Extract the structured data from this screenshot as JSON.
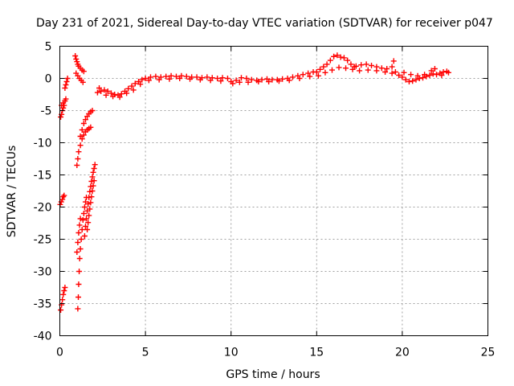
{
  "chart_data": {
    "type": "scatter",
    "title": "Day 231 of 2021, Sidereal Day-to-day VTEC variation (SDTVAR) for receiver p047",
    "xlabel": "GPS time / hours",
    "ylabel": "SDTVAR / TECUs",
    "xlim": [
      0,
      25
    ],
    "ylim": [
      -40,
      5
    ],
    "xticks": [
      0,
      5,
      10,
      15,
      20,
      25
    ],
    "yticks": [
      5,
      0,
      -5,
      -10,
      -15,
      -20,
      -25,
      -30,
      -35,
      -40
    ],
    "grid": true,
    "marker": "+",
    "color": "#ff0000",
    "series": [
      {
        "name": "SDTVAR",
        "points": [
          [
            0.05,
            -36.0
          ],
          [
            0.1,
            -35.2
          ],
          [
            0.15,
            -34.4
          ],
          [
            0.2,
            -33.6
          ],
          [
            0.25,
            -33.0
          ],
          [
            0.3,
            -32.5
          ],
          [
            0.02,
            -19.6
          ],
          [
            0.08,
            -19.2
          ],
          [
            0.15,
            -18.8
          ],
          [
            0.2,
            -18.4
          ],
          [
            0.25,
            -18.2
          ],
          [
            0.05,
            -6.0
          ],
          [
            0.1,
            -5.6
          ],
          [
            0.15,
            -5.0
          ],
          [
            0.2,
            -4.6
          ],
          [
            0.25,
            -4.2
          ],
          [
            0.1,
            -4.2
          ],
          [
            0.2,
            -3.8
          ],
          [
            0.3,
            -3.5
          ],
          [
            0.35,
            -3.2
          ],
          [
            0.3,
            -1.5
          ],
          [
            0.35,
            -1.0
          ],
          [
            0.4,
            -0.5
          ],
          [
            0.45,
            0.0
          ],
          [
            0.9,
            3.5
          ],
          [
            0.95,
            3.0
          ],
          [
            1.0,
            2.6
          ],
          [
            1.05,
            2.2
          ],
          [
            1.1,
            1.9
          ],
          [
            1.2,
            1.6
          ],
          [
            1.3,
            1.3
          ],
          [
            1.4,
            1.1
          ],
          [
            0.95,
            0.8
          ],
          [
            1.05,
            0.4
          ],
          [
            1.15,
            0.0
          ],
          [
            1.25,
            -0.3
          ],
          [
            1.35,
            -0.6
          ],
          [
            1.0,
            -13.5
          ],
          [
            1.05,
            -12.5
          ],
          [
            1.1,
            -11.4
          ],
          [
            1.2,
            -10.4
          ],
          [
            1.3,
            -9.4
          ],
          [
            1.4,
            -8.8
          ],
          [
            1.5,
            -8.3
          ],
          [
            1.6,
            -8.0
          ],
          [
            1.7,
            -7.8
          ],
          [
            1.8,
            -7.6
          ],
          [
            1.2,
            -9.0
          ],
          [
            1.3,
            -8.0
          ],
          [
            1.4,
            -7.0
          ],
          [
            1.5,
            -6.4
          ],
          [
            1.6,
            -5.9
          ],
          [
            1.7,
            -5.5
          ],
          [
            1.8,
            -5.2
          ],
          [
            1.9,
            -5.0
          ],
          [
            1.05,
            -35.8
          ],
          [
            1.08,
            -34.0
          ],
          [
            1.1,
            -32.0
          ],
          [
            1.13,
            -30.0
          ],
          [
            1.16,
            -28.0
          ],
          [
            1.2,
            -26.5
          ],
          [
            1.25,
            -25.0
          ],
          [
            1.3,
            -23.5
          ],
          [
            1.35,
            -22.0
          ],
          [
            1.4,
            -21.0
          ],
          [
            1.45,
            -20.0
          ],
          [
            1.5,
            -19.2
          ],
          [
            1.55,
            -18.5
          ],
          [
            1.0,
            -27.0
          ],
          [
            1.05,
            -25.5
          ],
          [
            1.1,
            -24.0
          ],
          [
            1.15,
            -22.8
          ],
          [
            1.2,
            -21.8
          ],
          [
            1.45,
            -24.5
          ],
          [
            1.5,
            -23.0
          ],
          [
            1.55,
            -21.8
          ],
          [
            1.6,
            -20.6
          ],
          [
            1.65,
            -19.5
          ],
          [
            1.7,
            -18.5
          ],
          [
            1.75,
            -17.6
          ],
          [
            1.8,
            -16.8
          ],
          [
            1.85,
            -16.0
          ],
          [
            1.9,
            -15.3
          ],
          [
            1.95,
            -14.6
          ],
          [
            2.0,
            -14.0
          ],
          [
            2.05,
            -13.4
          ],
          [
            1.6,
            -23.5
          ],
          [
            1.65,
            -22.4
          ],
          [
            1.7,
            -21.3
          ],
          [
            1.75,
            -20.3
          ],
          [
            1.8,
            -19.3
          ],
          [
            1.85,
            -18.4
          ],
          [
            1.9,
            -17.5
          ],
          [
            1.95,
            -16.7
          ],
          [
            2.0,
            -15.9
          ],
          [
            2.2,
            -2.2
          ],
          [
            2.4,
            -2.0
          ],
          [
            2.6,
            -1.8
          ],
          [
            2.8,
            -2.0
          ],
          [
            3.0,
            -2.3
          ],
          [
            3.2,
            -2.5
          ],
          [
            3.4,
            -2.6
          ],
          [
            3.6,
            -2.4
          ],
          [
            3.8,
            -2.0
          ],
          [
            4.0,
            -1.6
          ],
          [
            4.2,
            -1.2
          ],
          [
            4.4,
            -0.8
          ],
          [
            4.6,
            -0.5
          ],
          [
            4.8,
            -0.2
          ],
          [
            2.3,
            -1.5
          ],
          [
            2.7,
            -2.6
          ],
          [
            3.1,
            -2.8
          ],
          [
            3.5,
            -2.9
          ],
          [
            3.9,
            -2.3
          ],
          [
            4.3,
            -1.8
          ],
          [
            4.7,
            -0.9
          ],
          [
            5.0,
            0.0
          ],
          [
            5.3,
            0.2
          ],
          [
            5.6,
            0.3
          ],
          [
            5.9,
            0.2
          ],
          [
            6.2,
            0.3
          ],
          [
            6.5,
            0.4
          ],
          [
            6.8,
            0.3
          ],
          [
            7.1,
            0.4
          ],
          [
            7.4,
            0.3
          ],
          [
            7.7,
            0.2
          ],
          [
            8.0,
            0.2
          ],
          [
            8.3,
            0.1
          ],
          [
            8.6,
            0.2
          ],
          [
            8.9,
            0.1
          ],
          [
            9.2,
            0.0
          ],
          [
            9.5,
            0.1
          ],
          [
            9.8,
            0.0
          ],
          [
            5.2,
            -0.3
          ],
          [
            5.8,
            -0.2
          ],
          [
            6.4,
            -0.1
          ],
          [
            7.0,
            0.0
          ],
          [
            7.6,
            -0.1
          ],
          [
            8.2,
            -0.2
          ],
          [
            8.8,
            -0.3
          ],
          [
            9.4,
            -0.4
          ],
          [
            10.0,
            -0.5
          ],
          [
            10.1,
            -0.8
          ],
          [
            10.3,
            -0.3
          ],
          [
            10.6,
            0.1
          ],
          [
            10.9,
            0.0
          ],
          [
            11.2,
            -0.2
          ],
          [
            11.5,
            -0.3
          ],
          [
            11.8,
            -0.2
          ],
          [
            12.1,
            -0.1
          ],
          [
            12.4,
            -0.2
          ],
          [
            12.7,
            -0.2
          ],
          [
            13.0,
            -0.1
          ],
          [
            13.3,
            0.0
          ],
          [
            13.6,
            0.2
          ],
          [
            13.9,
            0.4
          ],
          [
            14.2,
            0.6
          ],
          [
            14.5,
            0.8
          ],
          [
            14.8,
            1.0
          ],
          [
            10.5,
            -0.6
          ],
          [
            11.0,
            -0.6
          ],
          [
            11.6,
            -0.5
          ],
          [
            12.2,
            -0.5
          ],
          [
            12.8,
            -0.4
          ],
          [
            13.4,
            -0.3
          ],
          [
            14.0,
            0.0
          ],
          [
            14.6,
            0.3
          ],
          [
            15.0,
            1.0
          ],
          [
            15.2,
            1.4
          ],
          [
            15.4,
            1.8
          ],
          [
            15.6,
            2.2
          ],
          [
            15.8,
            2.8
          ],
          [
            16.0,
            3.4
          ],
          [
            16.2,
            3.6
          ],
          [
            16.4,
            3.3
          ],
          [
            16.6,
            3.2
          ],
          [
            16.8,
            2.8
          ],
          [
            17.0,
            2.2
          ],
          [
            17.2,
            1.8
          ],
          [
            15.1,
            0.4
          ],
          [
            15.5,
            0.9
          ],
          [
            15.9,
            1.3
          ],
          [
            16.3,
            1.7
          ],
          [
            16.7,
            1.6
          ],
          [
            17.1,
            1.4
          ],
          [
            17.3,
            1.9
          ],
          [
            17.6,
            2.1
          ],
          [
            17.9,
            2.2
          ],
          [
            18.2,
            2.0
          ],
          [
            18.5,
            1.8
          ],
          [
            18.8,
            1.6
          ],
          [
            19.1,
            1.5
          ],
          [
            19.4,
            1.8
          ],
          [
            19.5,
            2.7
          ],
          [
            17.5,
            1.2
          ],
          [
            18.0,
            1.3
          ],
          [
            18.5,
            1.2
          ],
          [
            19.0,
            1.0
          ],
          [
            19.4,
            0.8
          ],
          [
            19.6,
            1.0
          ],
          [
            19.8,
            0.5
          ],
          [
            20.0,
            0.2
          ],
          [
            20.2,
            -0.2
          ],
          [
            20.4,
            -0.5
          ],
          [
            20.6,
            -0.4
          ],
          [
            20.8,
            -0.2
          ],
          [
            21.0,
            0.0
          ],
          [
            21.2,
            0.1
          ],
          [
            21.4,
            0.3
          ],
          [
            21.6,
            0.5
          ],
          [
            21.8,
            0.7
          ],
          [
            22.0,
            0.6
          ],
          [
            22.2,
            0.8
          ],
          [
            22.4,
            1.0
          ],
          [
            22.6,
            1.1
          ],
          [
            20.1,
            0.9
          ],
          [
            20.5,
            0.6
          ],
          [
            20.9,
            0.4
          ],
          [
            21.3,
            0.6
          ],
          [
            21.7,
            1.2
          ],
          [
            21.9,
            1.5
          ],
          [
            22.3,
            0.5
          ],
          [
            22.7,
            0.9
          ]
        ]
      }
    ]
  }
}
